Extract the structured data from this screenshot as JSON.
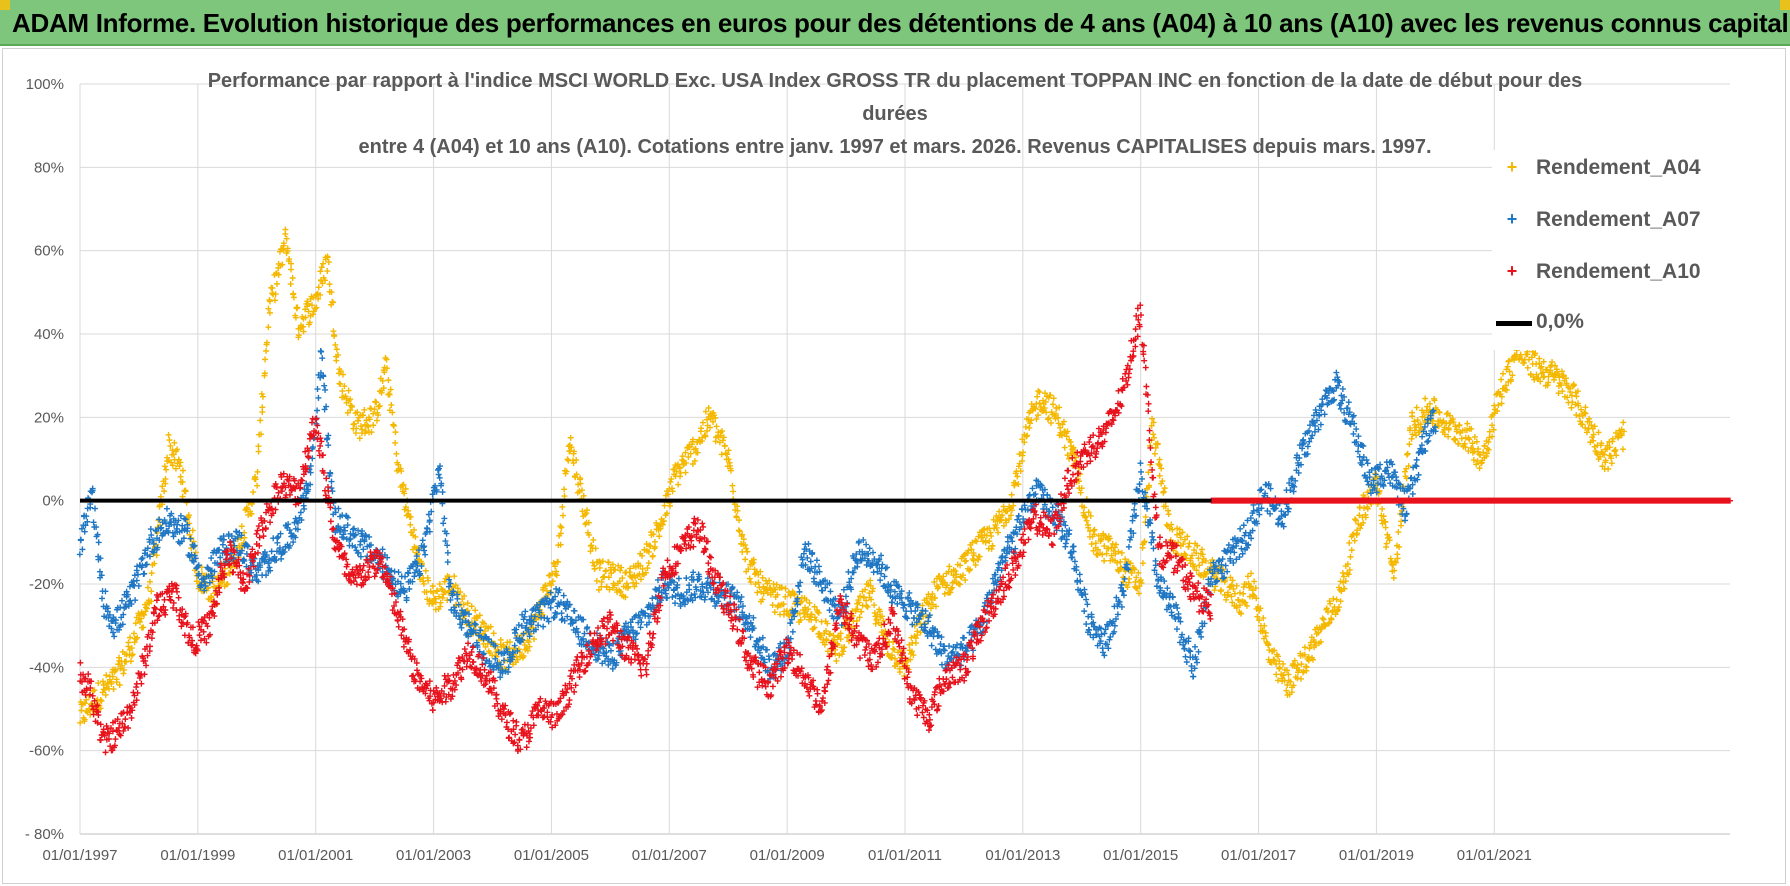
{
  "banner": {
    "title": "ADAM Informe. Evolution historique des performances en euros pour des détentions de 4 ans (A04) à 10 ans (A10) avec les revenus connus capitalisés"
  },
  "colors": {
    "banner_bg": "#7dc67b",
    "A04": "#f5b800",
    "A07": "#1f77c4",
    "A10": "#e8121c",
    "zero_line": "#000000",
    "grid": "#d9d9d9"
  },
  "chart_data": {
    "type": "scatter",
    "title_lines": [
      "Performance par rapport à l'indice MSCI WORLD Exc. USA Index GROSS TR  du placement TOPPAN INC en fonction de la date de début pour des",
      "durées",
      "entre 4 (A04) et 10 ans (A10).  Cotations entre janv. 1997 et mars. 2026.  Revenus CAPITALISES depuis mars. 1997."
    ],
    "ylabel": "",
    "xlabel": "",
    "ylim": [
      -80,
      100
    ],
    "xlim": [
      1997.0,
      2025.0
    ],
    "y_ticks": [
      "100%",
      "80%",
      "60%",
      "40%",
      "20%",
      "0%",
      "-20%",
      "-40%",
      "-60%",
      "- 80%"
    ],
    "y_tick_values": [
      100,
      80,
      60,
      40,
      20,
      0,
      -20,
      -40,
      -60,
      -80
    ],
    "x_ticks": [
      "01/01/1997",
      "01/01/1999",
      "01/01/2001",
      "01/01/2003",
      "01/01/2005",
      "01/01/2007",
      "01/01/2009",
      "01/01/2011",
      "01/01/2013",
      "01/01/2015",
      "01/01/2017",
      "01/01/2019",
      "01/01/2021"
    ],
    "x_tick_values": [
      1997,
      1999,
      2001,
      2003,
      2005,
      2007,
      2009,
      2011,
      2013,
      2015,
      2017,
      2019,
      2021
    ],
    "grid": true,
    "legend_position": "top-right",
    "legend": [
      "Rendement_A04",
      "Rendement_A07",
      "Rendement_A10",
      "0,0%"
    ],
    "series": [
      {
        "name": "Rendement_A04",
        "end": 2023.2,
        "x": [
          1997.0,
          1997.3,
          1997.6,
          1997.9,
          1998.2,
          1998.5,
          1998.7,
          1999.0,
          1999.3,
          1999.6,
          1999.8,
          2000.0,
          2000.2,
          2000.5,
          2000.7,
          2001.0,
          2001.2,
          2001.4,
          2001.7,
          2002.0,
          2002.2,
          2002.4,
          2002.6,
          2002.8,
          2003.0,
          2003.3,
          2003.6,
          2003.9,
          2004.2,
          2004.5,
          2004.7,
          2004.9,
          2005.1,
          2005.3,
          2005.5,
          2005.8,
          2006.0,
          2006.3,
          2006.6,
          2006.9,
          2007.1,
          2007.4,
          2007.7,
          2008.0,
          2008.3,
          2008.6,
          2008.9,
          2009.2,
          2009.5,
          2009.8,
          2010.1,
          2010.4,
          2010.7,
          2011.0,
          2011.3,
          2011.6,
          2011.9,
          2012.2,
          2012.5,
          2012.8,
          2013.1,
          2013.3,
          2013.6,
          2013.9,
          2014.2,
          2014.5,
          2014.8,
          2015.0,
          2015.2,
          2015.5,
          2015.8,
          2016.1,
          2016.4,
          2016.7,
          2016.9,
          2017.2,
          2017.5,
          2017.8,
          2018.1,
          2018.4,
          2018.7,
          2019.0,
          2019.3,
          2019.6,
          2019.9,
          2020.2,
          2020.5,
          2020.8,
          2021.1,
          2021.4,
          2021.7,
          2022.0,
          2022.3,
          2022.6,
          2022.9,
          2023.2
        ],
        "y": [
          -52,
          -47,
          -43,
          -34,
          -22,
          13,
          8,
          -18,
          -22,
          -14,
          -6,
          5,
          45,
          63,
          42,
          48,
          58,
          30,
          18,
          20,
          32,
          8,
          -5,
          -18,
          -24,
          -20,
          -28,
          -32,
          -38,
          -35,
          -30,
          -22,
          -16,
          15,
          2,
          -18,
          -18,
          -20,
          -14,
          -4,
          6,
          12,
          20,
          10,
          -14,
          -22,
          -24,
          -26,
          -28,
          -36,
          -30,
          -22,
          -34,
          -40,
          -28,
          -20,
          -18,
          -12,
          -8,
          0,
          18,
          25,
          20,
          8,
          -10,
          -12,
          -18,
          -20,
          18,
          -8,
          -12,
          -16,
          -20,
          -24,
          -20,
          -38,
          -44,
          -38,
          -30,
          -22,
          -4,
          4,
          -18,
          18,
          22,
          18,
          16,
          10,
          26,
          36,
          32,
          30,
          26,
          18,
          10,
          16
        ]
      },
      {
        "name": "Rendement_A07",
        "end": 2020.0,
        "x": [
          1997.0,
          1997.2,
          1997.4,
          1997.6,
          1997.9,
          1998.2,
          1998.5,
          1998.8,
          1999.1,
          1999.4,
          1999.7,
          2000.0,
          2000.3,
          2000.6,
          2000.9,
          2001.1,
          2001.3,
          2001.6,
          2001.9,
          2002.2,
          2002.5,
          2002.8,
          2003.1,
          2003.3,
          2003.6,
          2003.9,
          2004.2,
          2004.5,
          2004.8,
          2005.1,
          2005.4,
          2005.7,
          2006.0,
          2006.3,
          2006.6,
          2006.9,
          2007.2,
          2007.5,
          2007.8,
          2008.1,
          2008.4,
          2008.7,
          2009.0,
          2009.3,
          2009.6,
          2009.9,
          2010.2,
          2010.5,
          2010.8,
          2011.1,
          2011.4,
          2011.7,
          2012.0,
          2012.3,
          2012.6,
          2012.9,
          2013.2,
          2013.5,
          2013.8,
          2014.1,
          2014.4,
          2014.7,
          2015.0,
          2015.3,
          2015.6,
          2015.9,
          2016.2,
          2016.5,
          2016.8,
          2017.1,
          2017.4,
          2017.7,
          2018.0,
          2018.3,
          2018.6,
          2018.9,
          2019.2,
          2019.5,
          2019.8,
          2020.0
        ],
        "y": [
          -12,
          2,
          -24,
          -30,
          -22,
          -10,
          -5,
          -8,
          -20,
          -12,
          -10,
          -18,
          -12,
          -8,
          5,
          35,
          -4,
          -8,
          -12,
          -16,
          -22,
          -14,
          8,
          -24,
          -30,
          -36,
          -40,
          -30,
          -28,
          -24,
          -30,
          -34,
          -38,
          -32,
          -28,
          -20,
          -22,
          -20,
          -22,
          -24,
          -30,
          -40,
          -36,
          -12,
          -20,
          -28,
          -12,
          -14,
          -22,
          -26,
          -30,
          -38,
          -36,
          -30,
          -16,
          -8,
          2,
          -2,
          -10,
          -28,
          -34,
          -22,
          6,
          -20,
          -28,
          -40,
          -18,
          -14,
          -8,
          2,
          -4,
          10,
          20,
          28,
          18,
          4,
          8,
          -2,
          14,
          20
        ]
      },
      {
        "name": "Rendement_A10",
        "end": 2016.2,
        "x": [
          1997.0,
          1997.2,
          1997.4,
          1997.6,
          1997.8,
          1998.0,
          1998.3,
          1998.6,
          1998.9,
          1999.2,
          1999.5,
          1999.8,
          2000.1,
          2000.4,
          2000.7,
          2001.0,
          2001.3,
          2001.6,
          2001.9,
          2002.1,
          2002.4,
          2002.7,
          2003.0,
          2003.3,
          2003.6,
          2003.9,
          2004.2,
          2004.5,
          2004.8,
          2005.1,
          2005.4,
          2005.7,
          2006.0,
          2006.3,
          2006.6,
          2006.9,
          2007.2,
          2007.5,
          2007.8,
          2008.1,
          2008.4,
          2008.7,
          2009.0,
          2009.3,
          2009.6,
          2009.9,
          2010.2,
          2010.5,
          2010.8,
          2011.1,
          2011.4,
          2011.7,
          2012.0,
          2012.3,
          2012.6,
          2012.9,
          2013.2,
          2013.5,
          2013.8,
          2014.1,
          2014.4,
          2014.7,
          2015.0,
          2015.3,
          2015.6,
          2015.9,
          2016.2
        ],
        "y": [
          -42,
          -46,
          -58,
          -56,
          -52,
          -44,
          -26,
          -22,
          -34,
          -30,
          -12,
          -20,
          -6,
          4,
          2,
          20,
          -8,
          -20,
          -16,
          -14,
          -28,
          -42,
          -48,
          -44,
          -36,
          -42,
          -52,
          -58,
          -50,
          -52,
          -42,
          -34,
          -30,
          -36,
          -40,
          -18,
          -12,
          -6,
          -20,
          -28,
          -40,
          -44,
          -36,
          -42,
          -50,
          -24,
          -34,
          -38,
          -28,
          -46,
          -52,
          -42,
          -40,
          -30,
          -22,
          -14,
          -4,
          -8,
          6,
          12,
          16,
          26,
          46,
          -12,
          -14,
          -22,
          -26
        ]
      }
    ],
    "a10_zero_band": {
      "x_start": 2016.2,
      "x_end": 2025.0,
      "y": 0
    },
    "zero_line": {
      "label": "0,0%",
      "y": 0
    }
  }
}
